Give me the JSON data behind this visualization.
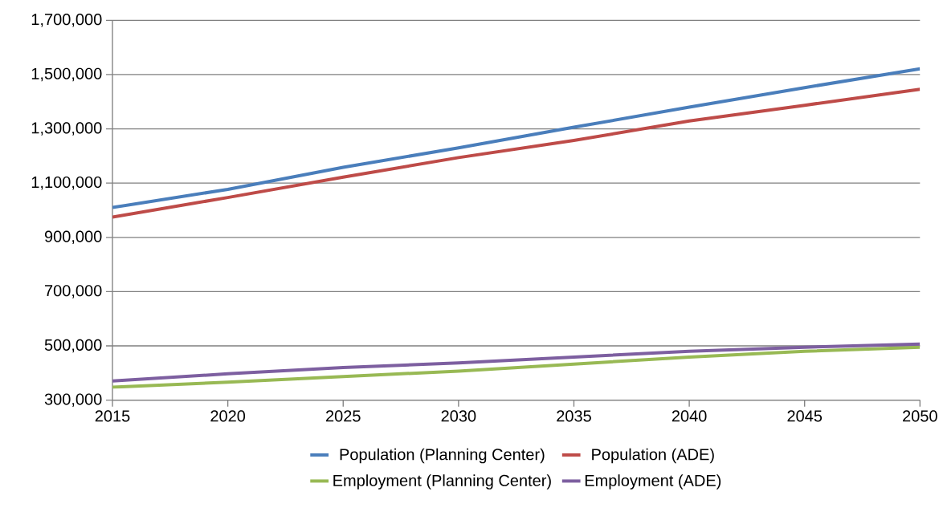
{
  "chart_data": {
    "type": "line",
    "x": [
      2015,
      2020,
      2025,
      2030,
      2035,
      2040,
      2045,
      2050
    ],
    "series": [
      {
        "name": "Population (Planning Center)",
        "color": "#4a7ebb",
        "values": [
          1010000,
          1077000,
          1158000,
          1230000,
          1306000,
          1380000,
          1452000,
          1521000
        ]
      },
      {
        "name": "Population (ADE)",
        "color": "#be4b48",
        "values": [
          975000,
          1047000,
          1122000,
          1194000,
          1257000,
          1329000,
          1387000,
          1446000
        ]
      },
      {
        "name": "Employment (Planning Center)",
        "color": "#98b954",
        "values": [
          348000,
          366000,
          387000,
          407000,
          433000,
          459000,
          480000,
          495000
        ]
      },
      {
        "name": "Employment (ADE)",
        "color": "#7d5fa0",
        "values": [
          371000,
          397000,
          420000,
          437000,
          459000,
          480000,
          495000,
          507000
        ]
      }
    ],
    "xlim": [
      2015,
      2050
    ],
    "xticks": [
      2015,
      2020,
      2025,
      2030,
      2035,
      2040,
      2045,
      2050
    ],
    "ylim": [
      300000,
      1700000
    ],
    "yticks": [
      {
        "value": 300000,
        "label": "300,000"
      },
      {
        "value": 500000,
        "label": "500,000"
      },
      {
        "value": 700000,
        "label": "700,000"
      },
      {
        "value": 900000,
        "label": "900,000"
      },
      {
        "value": 1100000,
        "label": "1,100,000"
      },
      {
        "value": 1300000,
        "label": "1,300,000"
      },
      {
        "value": 1500000,
        "label": "1,500,000"
      },
      {
        "value": 1700000,
        "label": "1,700,000"
      }
    ],
    "grid": "y",
    "legend": "bottom",
    "marker": "none",
    "line_style": "solid"
  }
}
